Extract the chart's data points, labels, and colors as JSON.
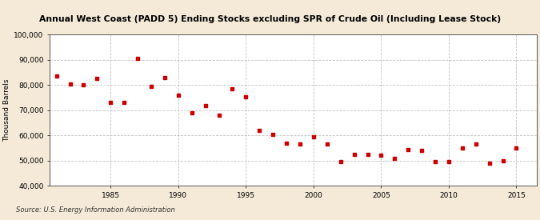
{
  "title": "Annual West Coast (PADD 5) Ending Stocks excluding SPR of Crude Oil (Including Lease Stock)",
  "ylabel": "Thousand Barrels",
  "source": "Source: U.S. Energy Information Administration",
  "background_color": "#f5ead8",
  "plot_background_color": "#ffffff",
  "marker_color": "#cc0000",
  "grid_color": "#bbbbbb",
  "ylim": [
    40000,
    100000
  ],
  "yticks": [
    40000,
    50000,
    60000,
    70000,
    80000,
    90000,
    100000
  ],
  "xlim": [
    1980.5,
    2016.5
  ],
  "xticks": [
    1985,
    1990,
    1995,
    2000,
    2005,
    2010,
    2015
  ],
  "years": [
    1981,
    1982,
    1983,
    1984,
    1985,
    1986,
    1987,
    1988,
    1989,
    1990,
    1991,
    1992,
    1993,
    1994,
    1995,
    1996,
    1997,
    1998,
    1999,
    2000,
    2001,
    2002,
    2003,
    2004,
    2005,
    2006,
    2007,
    2008,
    2009,
    2010,
    2011,
    2012,
    2013,
    2014,
    2015
  ],
  "values": [
    83500,
    80500,
    80000,
    82500,
    73000,
    73000,
    90500,
    79500,
    83000,
    76000,
    69000,
    72000,
    68000,
    78500,
    75500,
    62000,
    60500,
    57000,
    56500,
    59500,
    56500,
    49500,
    52500,
    52500,
    52000,
    51000,
    54500,
    54000,
    49500,
    49500,
    55000,
    56500,
    49000,
    50000,
    55000
  ]
}
